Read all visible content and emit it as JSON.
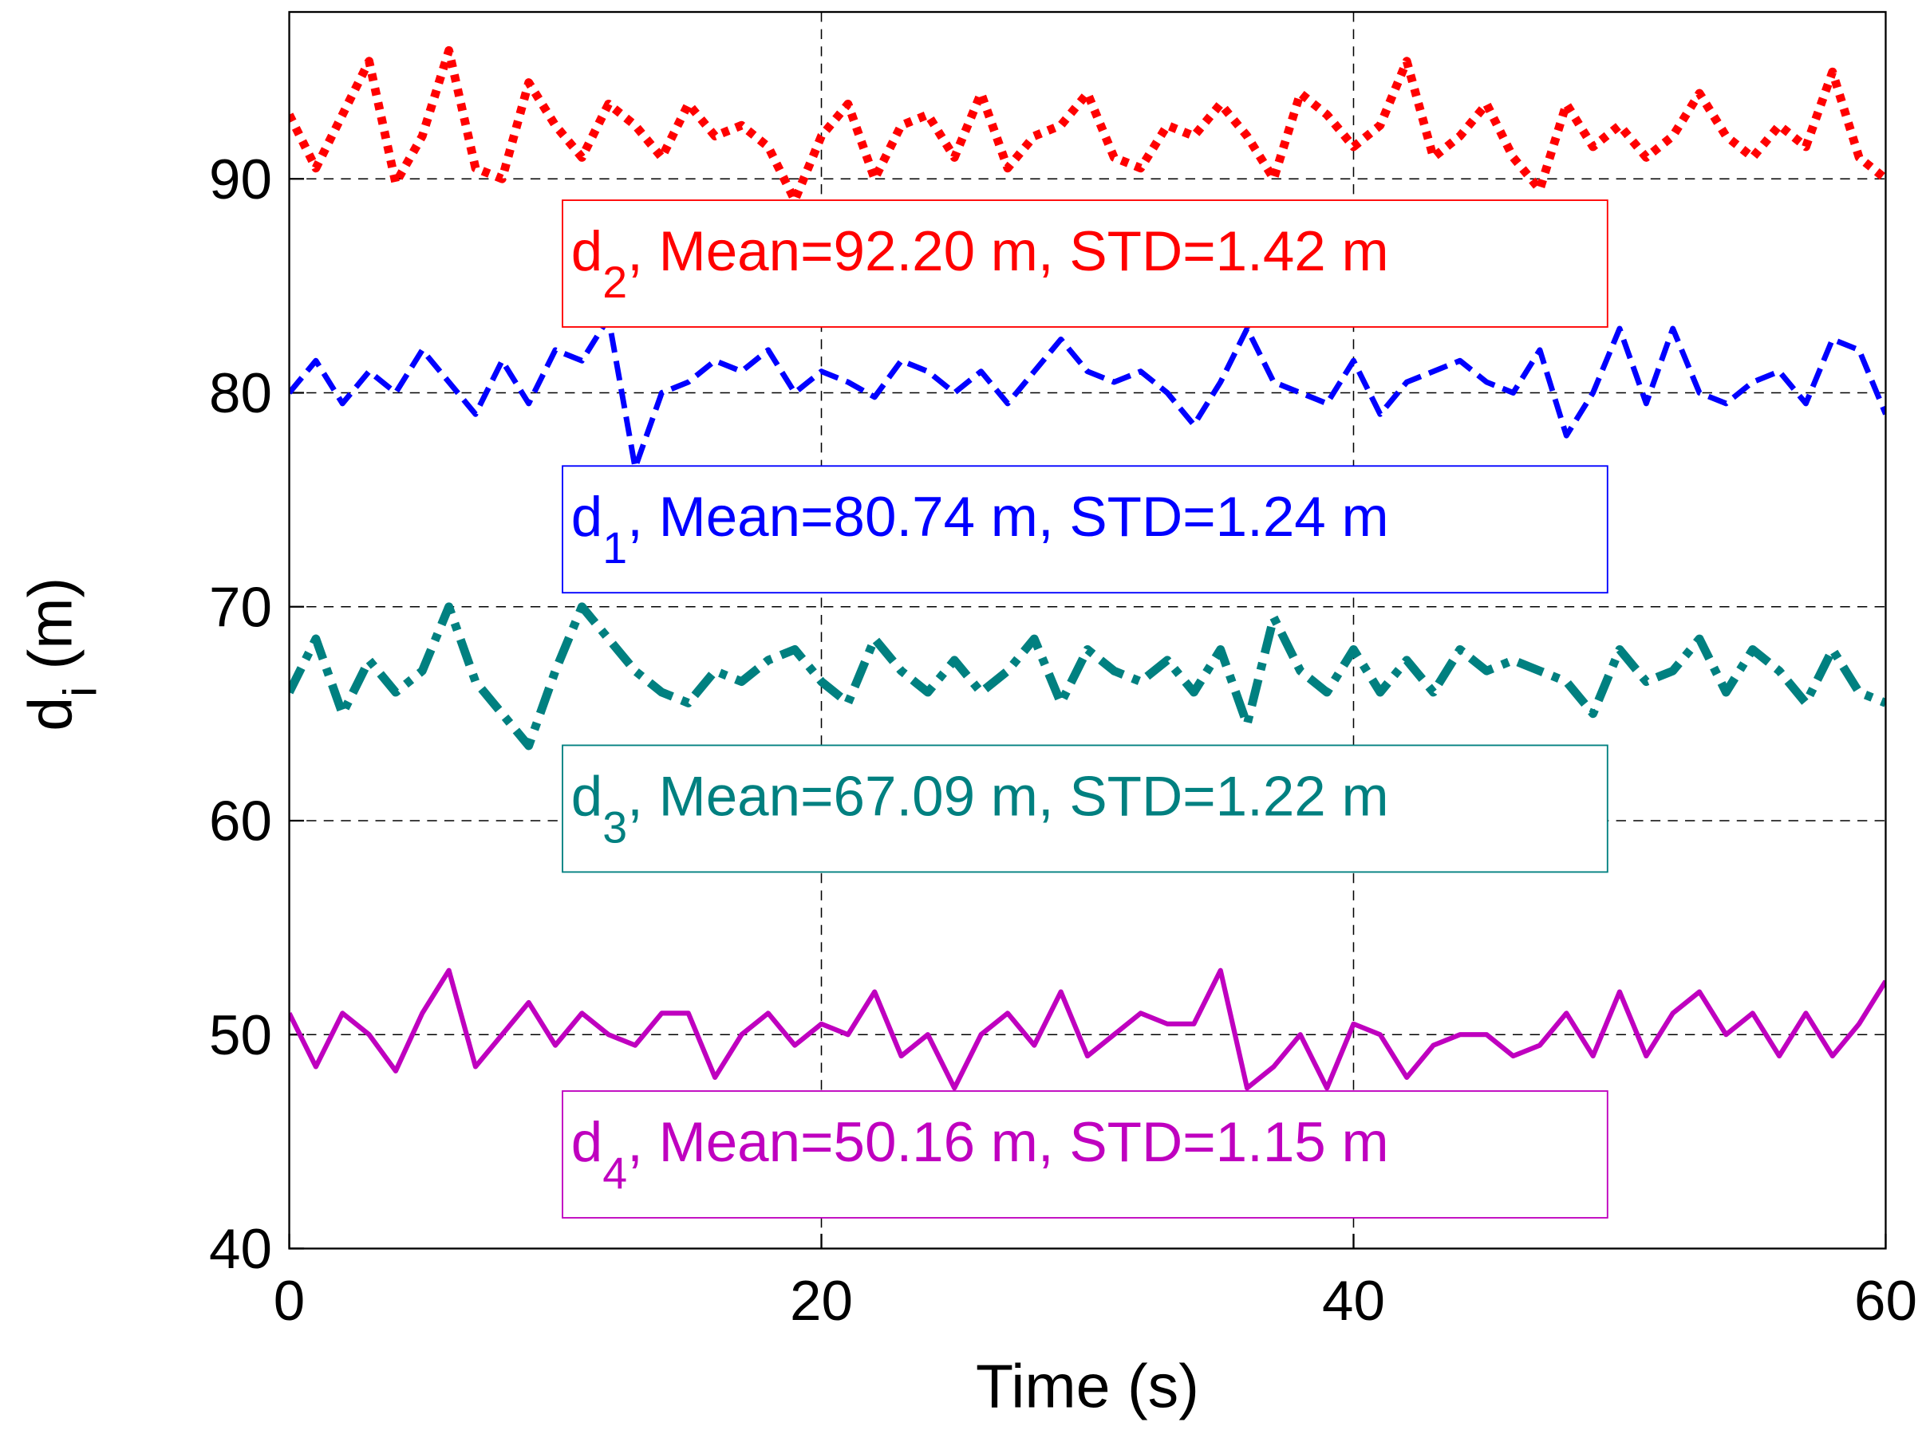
{
  "chart_data": {
    "type": "line",
    "xlabel": {
      "text": "Time (s)"
    },
    "ylabel": {
      "text": "d",
      "sub": "i",
      "rest": " (m)"
    },
    "x": [
      0,
      1,
      2,
      3,
      4,
      5,
      6,
      7,
      8,
      9,
      10,
      11,
      12,
      13,
      14,
      15,
      16,
      17,
      18,
      19,
      20,
      21,
      22,
      23,
      24,
      25,
      26,
      27,
      28,
      29,
      30,
      31,
      32,
      33,
      34,
      35,
      36,
      37,
      38,
      39,
      40,
      41,
      42,
      43,
      44,
      45,
      46,
      47,
      48,
      49,
      50,
      51,
      52,
      53,
      54,
      55,
      56,
      57,
      58,
      59,
      60
    ],
    "series": [
      {
        "color": "#ff0000",
        "style": "dotted",
        "values": [
          93,
          90.5,
          93,
          95.5,
          89.8,
          92,
          96,
          90.5,
          90,
          94.5,
          92.5,
          91,
          93.5,
          92.5,
          91,
          93.5,
          92,
          92.5,
          91.5,
          89,
          92,
          93.5,
          90,
          92.5,
          93,
          91,
          94,
          90.5,
          92,
          92.5,
          94,
          91,
          90.5,
          92.5,
          92,
          93.5,
          92,
          90,
          94,
          93,
          91.5,
          92.5,
          95.5,
          91,
          92,
          93.5,
          91,
          89.5,
          93.5,
          91.5,
          92.5,
          91,
          92,
          94,
          92,
          91,
          92.5,
          91.5,
          95,
          91,
          90
        ]
      },
      {
        "color": "#0000ff",
        "style": "dashed",
        "values": [
          80,
          81.5,
          79.5,
          81,
          80,
          82,
          80.5,
          79,
          81.5,
          79.5,
          82,
          81.5,
          83.5,
          76.5,
          80,
          80.5,
          81.5,
          81,
          82,
          80,
          81,
          80.5,
          79.8,
          81.5,
          81,
          80,
          81,
          79.5,
          81,
          82.5,
          81,
          80.5,
          81,
          80,
          78.5,
          80.5,
          83,
          80.5,
          80,
          79.5,
          81.5,
          79,
          80.5,
          81,
          81.5,
          80.5,
          80,
          82,
          78,
          80,
          83,
          79.5,
          83,
          80,
          79.5,
          80.5,
          81,
          79.5,
          82.5,
          82,
          79
        ]
      },
      {
        "color": "#008080",
        "style": "dashdot",
        "values": [
          66,
          68.5,
          65,
          67.5,
          66,
          67,
          70,
          66.5,
          65,
          63.5,
          67,
          70,
          68.5,
          67,
          66,
          65.5,
          67,
          66.5,
          67.5,
          68,
          66.5,
          65.5,
          68.5,
          67,
          66,
          67.5,
          66,
          67,
          68.5,
          65.5,
          68,
          67,
          66.5,
          67.5,
          66,
          68,
          64.5,
          69.5,
          67,
          66,
          68,
          66,
          67.5,
          66,
          68,
          67,
          67.5,
          67,
          66.5,
          65,
          68,
          66.5,
          67,
          68.5,
          66,
          68,
          67,
          65.5,
          68,
          66,
          65.5
        ]
      },
      {
        "color": "#bf00bf",
        "style": "solid",
        "values": [
          51,
          48.5,
          51,
          50,
          48.3,
          51,
          53,
          48.5,
          50,
          51.5,
          49.5,
          51,
          50,
          49.5,
          51,
          51,
          48,
          50,
          51,
          49.5,
          50.5,
          50,
          52,
          49,
          50,
          47.5,
          50,
          51,
          49.5,
          52,
          49,
          50,
          51,
          50.5,
          50.5,
          53,
          47.5,
          48.5,
          50,
          47.5,
          50.5,
          50,
          48,
          49.5,
          50,
          50,
          49,
          49.5,
          51,
          49,
          52,
          49,
          51,
          52,
          50,
          51,
          49,
          51,
          49,
          50.5,
          52.5
        ]
      }
    ],
    "annotations": [
      {
        "text": "d",
        "sub": "2",
        "rest": ", Mean=92.20 m, STD=1.42 m",
        "color": "#ff0000"
      },
      {
        "text": "d",
        "sub": "1",
        "rest": ", Mean=80.74 m, STD=1.24 m",
        "color": "#0000ff"
      },
      {
        "text": "d",
        "sub": "3",
        "rest": ", Mean=67.09 m, STD=1.22 m",
        "color": "#008080"
      },
      {
        "text": "d",
        "sub": "4",
        "rest": ", Mean=50.16 m, STD=1.15 m",
        "color": "#bf00bf"
      }
    ],
    "xlim": [
      0,
      60
    ],
    "xticks": [
      0,
      20,
      40,
      60
    ],
    "ylim": [
      40,
      97.8
    ],
    "yticks": [
      40,
      50,
      60,
      70,
      80,
      90
    ],
    "grid": true
  }
}
